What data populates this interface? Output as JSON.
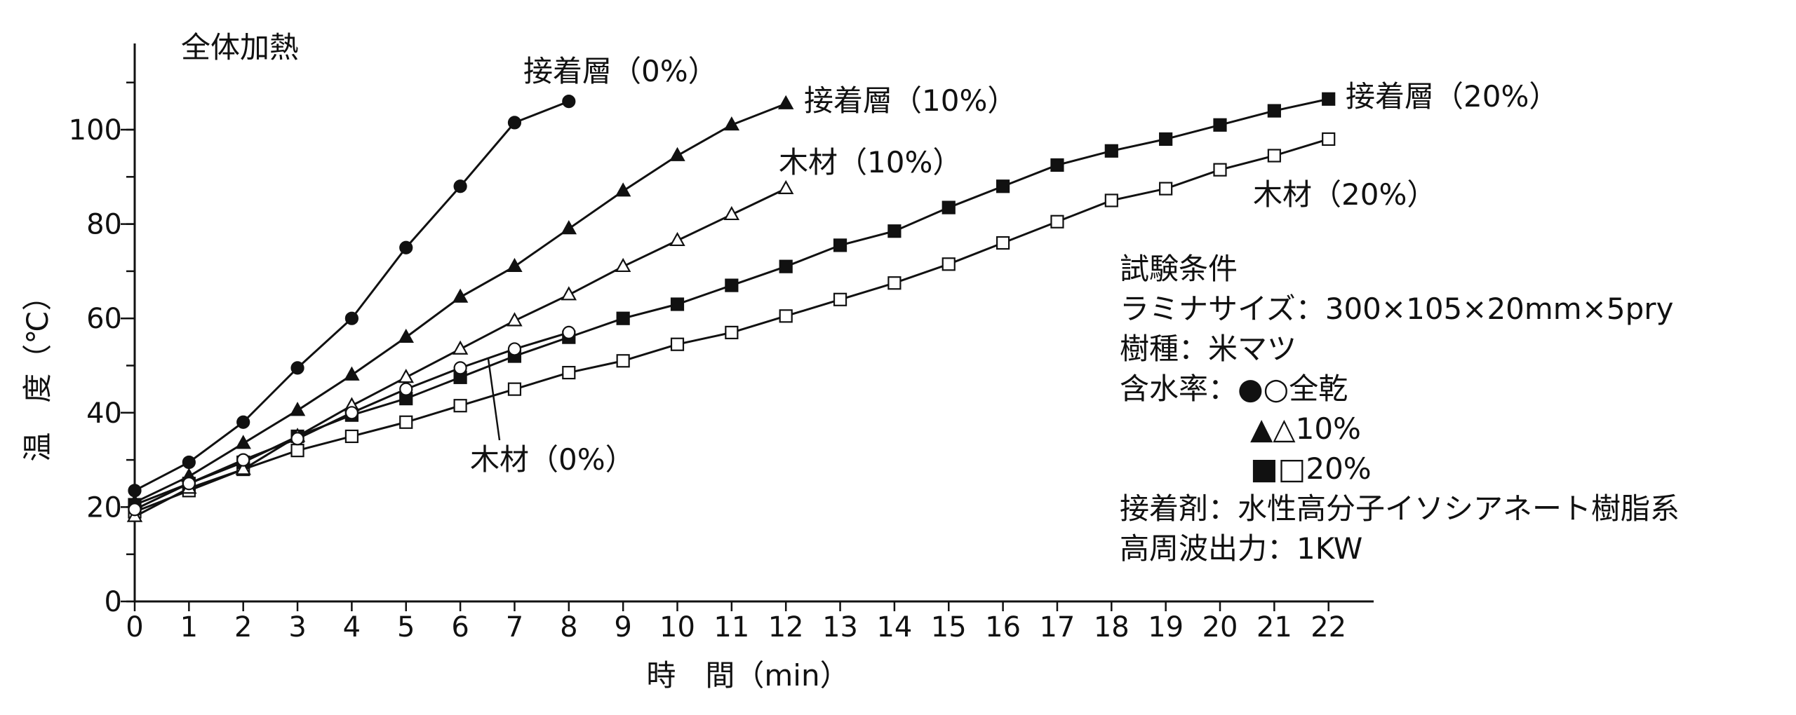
{
  "chart_data": {
    "type": "line",
    "title": "全体加熱",
    "xlabel": "時　間（min）",
    "ylabel": "温　度（℃）",
    "xlim": [
      0,
      22
    ],
    "ylim": [
      0,
      110
    ],
    "x_ticks": [
      0,
      1,
      2,
      3,
      4,
      5,
      6,
      7,
      8,
      9,
      10,
      11,
      12,
      13,
      14,
      15,
      16,
      17,
      18,
      19,
      20,
      21,
      22
    ],
    "y_ticks": [
      0,
      20,
      40,
      60,
      80,
      100
    ],
    "grid": false,
    "series": [
      {
        "name": "接着層（0%）",
        "marker": "filled-circle",
        "x": [
          0,
          1,
          2,
          3,
          4,
          5,
          6,
          7,
          8
        ],
        "y": [
          23.5,
          29.5,
          38,
          49.5,
          60,
          75,
          88,
          101.5,
          106
        ]
      },
      {
        "name": "接着層（10%）",
        "marker": "filled-triangle",
        "x": [
          0,
          1,
          2,
          3,
          4,
          5,
          6,
          7,
          8,
          9,
          10,
          11,
          12
        ],
        "y": [
          21,
          26.5,
          33.5,
          40.5,
          48,
          56,
          64.5,
          71,
          79,
          87,
          94.5,
          101,
          105.5
        ]
      },
      {
        "name": "木材（10%）",
        "marker": "open-triangle",
        "x": [
          0,
          1,
          2,
          3,
          4,
          5,
          6,
          7,
          8,
          9,
          10,
          11,
          12
        ],
        "y": [
          18,
          24,
          28,
          35,
          41.5,
          47.5,
          53.5,
          59.5,
          65,
          71,
          76.5,
          82,
          87.5
        ]
      },
      {
        "name": "接着層（20%）",
        "marker": "filled-square",
        "x": [
          0,
          1,
          2,
          3,
          4,
          5,
          6,
          7,
          8,
          9,
          10,
          11,
          12,
          13,
          14,
          15,
          16,
          17,
          18,
          19,
          20,
          21,
          22
        ],
        "y": [
          20.5,
          25,
          29.5,
          35,
          39.5,
          43,
          47.5,
          52,
          56,
          60,
          63,
          67,
          71,
          75.5,
          78.5,
          83.5,
          88,
          92.5,
          95.5,
          98,
          101,
          104,
          106.5
        ]
      },
      {
        "name": "木材（20%）",
        "marker": "open-square",
        "x": [
          0,
          1,
          2,
          3,
          4,
          5,
          6,
          7,
          8,
          9,
          10,
          11,
          12,
          13,
          14,
          15,
          16,
          17,
          18,
          19,
          20,
          21,
          22
        ],
        "y": [
          19,
          23.5,
          28,
          32,
          35,
          38,
          41.5,
          45,
          48.5,
          51,
          54.5,
          57,
          60.5,
          64,
          67.5,
          71.5,
          76,
          80.5,
          85,
          87.5,
          91.5,
          94.5,
          98
        ]
      },
      {
        "name": "木材（0%）",
        "marker": "open-circle",
        "x": [
          0,
          1,
          2,
          3,
          4,
          5,
          6,
          7,
          8
        ],
        "y": [
          19.5,
          25,
          30,
          34.5,
          40,
          45,
          49.5,
          53.5,
          57
        ]
      }
    ],
    "conditions": {
      "heading": "試験条件",
      "lines": [
        "ラミナサイズ：300×105×20mm×5pry",
        "樹種：米マツ",
        "含水率：●○全乾",
        "▲△10%",
        "■□20%",
        "接着剤：水性高分子イソシアネート樹脂系",
        "高周波出力：1KW"
      ]
    }
  }
}
